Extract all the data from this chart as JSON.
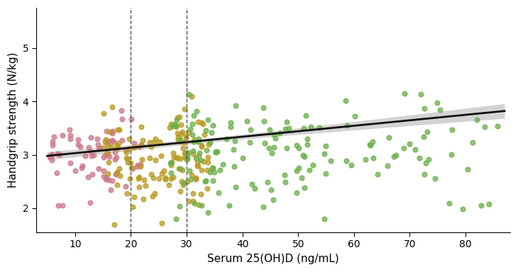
{
  "xlabel": "Serum 25(OH)D (ng/mL)",
  "ylabel": "Handgrip strength (N/kg)",
  "xlim": [
    3,
    88
  ],
  "ylim": [
    1.55,
    5.75
  ],
  "xticks": [
    10,
    20,
    30,
    40,
    50,
    60,
    70,
    80
  ],
  "yticks": [
    2,
    3,
    4,
    5
  ],
  "vlines": [
    20,
    30
  ],
  "color_low": "#cc7788",
  "color_mid": "#b89a20",
  "color_high": "#6ab04a",
  "regression_color": "#111111",
  "ci_color": "#cccccc",
  "point_size": 22,
  "point_lw": 1.2,
  "regression_lw": 2.0,
  "seed": 17,
  "xlabel_fontsize": 11,
  "ylabel_fontsize": 11,
  "tick_fontsize": 10,
  "reg_x0": 5,
  "reg_x1": 87,
  "reg_y0": 2.98,
  "reg_y1": 3.82,
  "ci_narrow": 0.06,
  "ci_wide": 0.14
}
